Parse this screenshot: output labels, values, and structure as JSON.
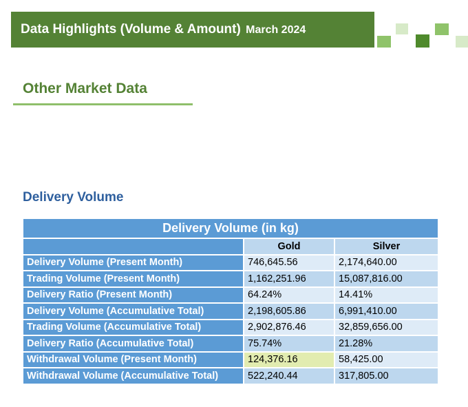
{
  "banner": {
    "title": "Data Highlights (Volume & Amount)",
    "date": "March 2024",
    "color": "#548235"
  },
  "section": {
    "title": "Other Market Data",
    "subtitle": "Delivery Volume"
  },
  "table": {
    "title": "Delivery Volume (in kg)",
    "columns": [
      "Gold",
      "Silver"
    ],
    "rows": [
      {
        "label": "Delivery Volume (Present Month)",
        "gold": "746,645.56",
        "silver": "2,174,640.00"
      },
      {
        "label": "Trading Volume (Present Month)",
        "gold": "1,162,251.96",
        "silver": "15,087,816.00"
      },
      {
        "label": "Delivery Ratio (Present Month)",
        "gold": "64.24%",
        "silver": "14.41%"
      },
      {
        "label": "Delivery Volume (Accumulative Total)",
        "gold": "2,198,605.86",
        "silver": "6,991,410.00"
      },
      {
        "label": "Trading Volume (Accumulative Total)",
        "gold": "2,902,876.46",
        "silver": "32,859,656.00"
      },
      {
        "label": "Delivery Ratio (Accumulative Total)",
        "gold": "75.74%",
        "silver": "21.28%"
      },
      {
        "label": "Withdrawal Volume (Present Month)",
        "gold": "124,376.16",
        "silver": "58,425.00"
      },
      {
        "label": "Withdrawal Volume (Accumulative Total)",
        "gold": "522,240.44",
        "silver": "317,805.00"
      }
    ],
    "header_color": "#5b9bd5"
  }
}
